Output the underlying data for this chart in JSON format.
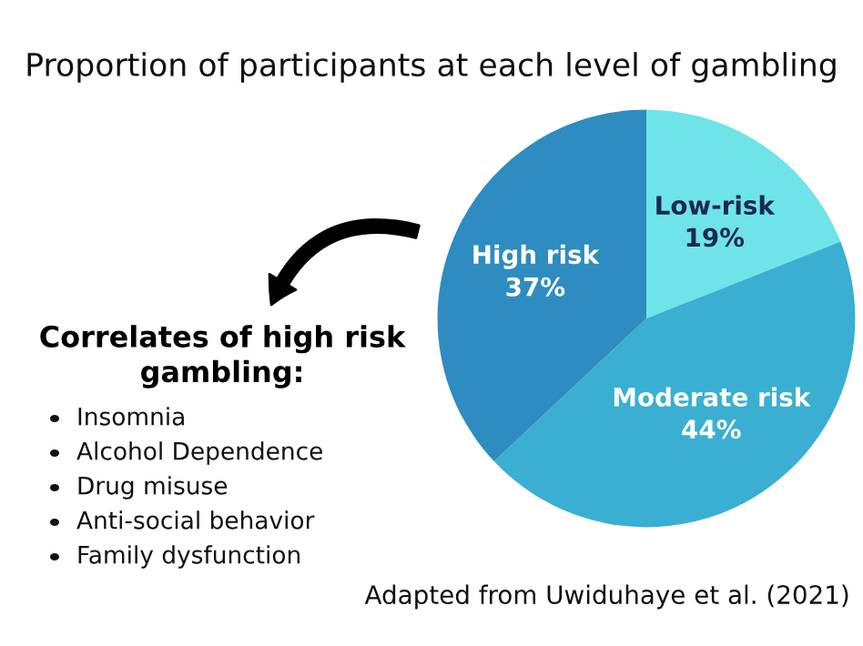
{
  "chart_data": [
    {
      "type": "pie",
      "title": "Proportion of participants at each level of gambling",
      "categories": [
        "Low-risk",
        "Moderate risk",
        "High risk"
      ],
      "values": [
        19,
        44,
        37
      ],
      "value_labels": [
        "19%",
        "44%",
        "37%"
      ],
      "colors": [
        "#6fe4e8",
        "#3aafd2",
        "#2e8cc0"
      ],
      "annotations": [
        "Adapted from Uwiduhaye et al. (2021)"
      ]
    },
    {
      "type": "other",
      "title": "Correlates of high risk gambling:",
      "annotations": [
        "Insomnia",
        "Alcohol Dependence",
        "Drug misuse",
        "Anti-social behavior",
        "Family dysfunction"
      ]
    }
  ]
}
